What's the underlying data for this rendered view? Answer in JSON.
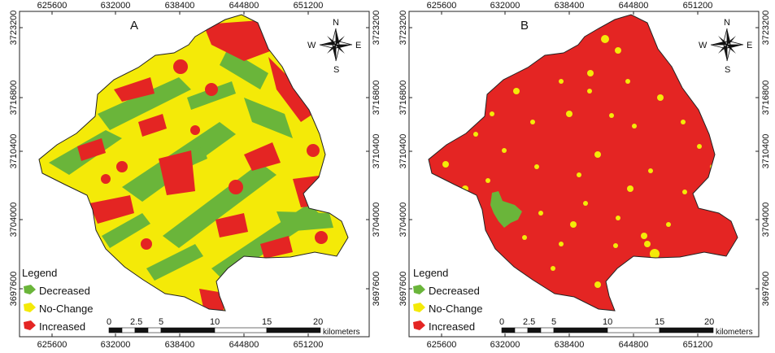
{
  "maps": [
    {
      "label": "A",
      "dominant": "mixed",
      "x_ticks": [
        "625600",
        "632000",
        "638400",
        "644800",
        "651200"
      ],
      "y_ticks": [
        "3723200",
        "3716800",
        "3710400",
        "3704000",
        "3697600"
      ]
    },
    {
      "label": "B",
      "dominant": "increased",
      "x_ticks": [
        "625600",
        "632000",
        "638400",
        "644800",
        "651200"
      ],
      "y_ticks": [
        "3723200",
        "3716800",
        "3710400",
        "3704000",
        "3697600"
      ]
    }
  ],
  "legend": {
    "title": "Legend",
    "items": [
      {
        "label": "Decreased",
        "color": "#6ab53a"
      },
      {
        "label": "No-Change",
        "color": "#f4ea08"
      },
      {
        "label": "Increased",
        "color": "#e42523"
      }
    ]
  },
  "compass": {
    "n": "N",
    "s": "S",
    "e": "E",
    "w": "W"
  },
  "scalebar": {
    "labels": [
      "0",
      "2.5",
      "5",
      "10",
      "15",
      "20"
    ],
    "unit": "kilometers"
  },
  "colors": {
    "decreased": "#6ab53a",
    "no_change": "#f4ea08",
    "increased": "#e42523",
    "frame": "#222222"
  }
}
